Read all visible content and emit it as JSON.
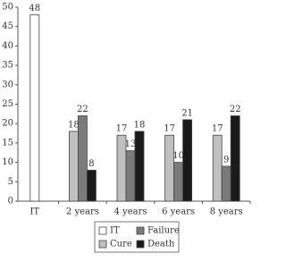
{
  "chart_data": {
    "type": "bar",
    "categories": [
      "IT",
      "2 years",
      "4 years",
      "6 years",
      "8 years"
    ],
    "series": [
      {
        "name": "IT",
        "color": "#ffffff",
        "values": [
          48,
          null,
          null,
          null,
          null
        ]
      },
      {
        "name": "Cure",
        "color": "#c0c0c0",
        "values": [
          null,
          18,
          17,
          17,
          17
        ]
      },
      {
        "name": "Failure",
        "color": "#7a7a7a",
        "values": [
          null,
          22,
          13,
          10,
          9
        ]
      },
      {
        "name": "Death",
        "color": "#1a1a1a",
        "values": [
          null,
          8,
          18,
          21,
          22
        ]
      }
    ],
    "ylim": [
      0,
      50
    ],
    "yticks": [
      0,
      5,
      10,
      15,
      20,
      25,
      30,
      35,
      40,
      45,
      50
    ],
    "grid": false
  }
}
